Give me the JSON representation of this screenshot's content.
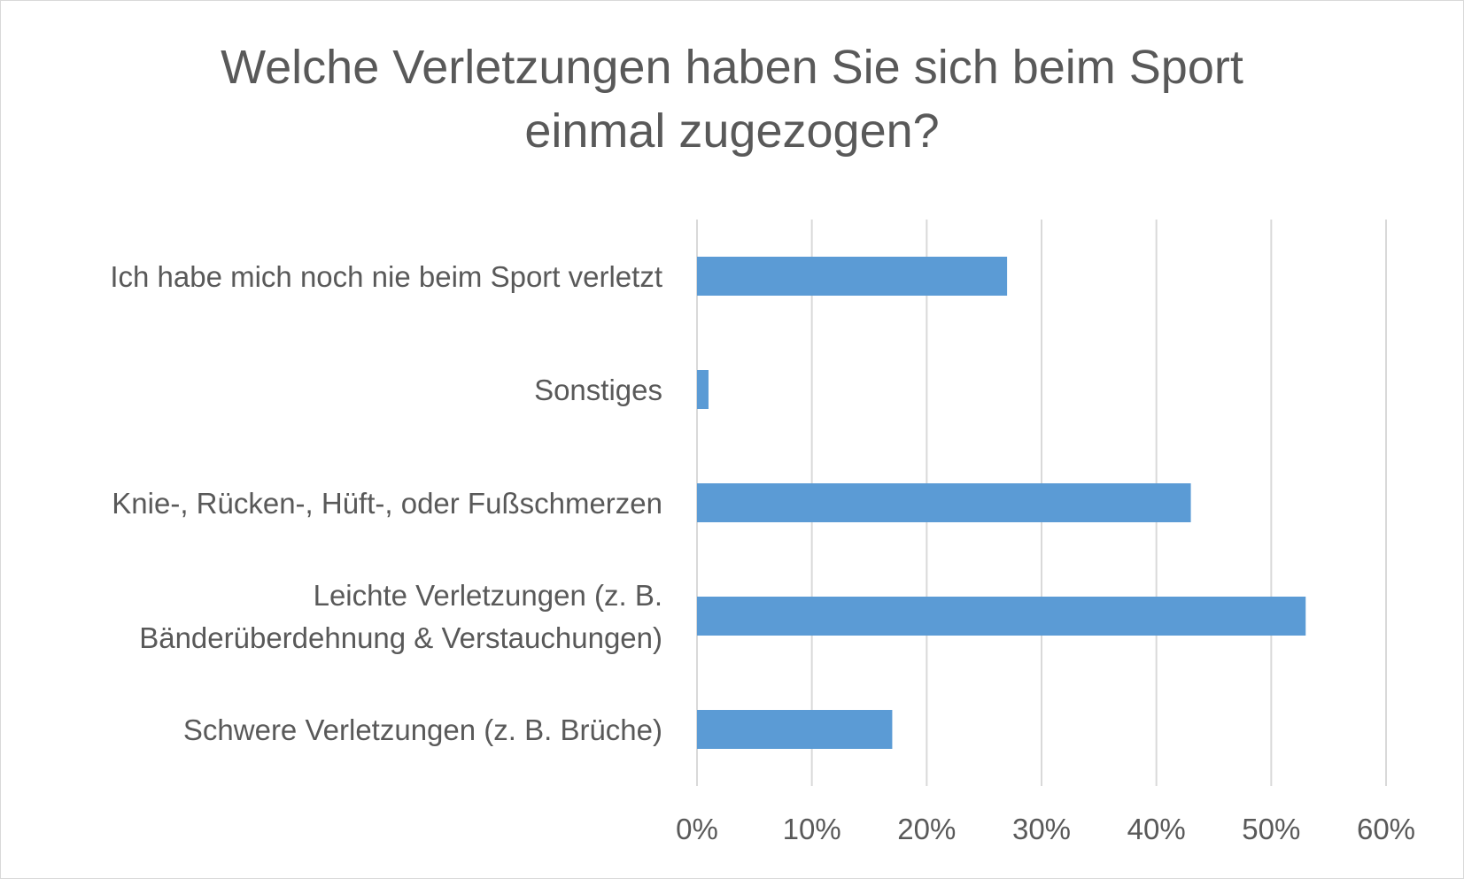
{
  "chart_data": {
    "type": "bar",
    "orientation": "horizontal",
    "title_lines": [
      "Welche Verletzungen haben Sie sich beim Sport",
      "einmal zugezogen?"
    ],
    "categories": [
      [
        "Ich habe mich noch nie beim Sport verletzt"
      ],
      [
        "Sonstiges"
      ],
      [
        "Knie-, Rücken-, Hüft-, oder Fußschmerzen"
      ],
      [
        "Leichte Verletzungen (z. B.",
        "Bänderüberdehnung & Verstauchungen)"
      ],
      [
        "Schwere Verletzungen (z. B. Brüche)"
      ]
    ],
    "values": [
      0.27,
      0.01,
      0.43,
      0.53,
      0.17
    ],
    "xlim": [
      0,
      0.6
    ],
    "xticks": [
      0,
      0.1,
      0.2,
      0.3,
      0.4,
      0.5,
      0.6
    ],
    "xtick_labels": [
      "0%",
      "10%",
      "20%",
      "30%",
      "40%",
      "50%",
      "60%"
    ],
    "bar_color": "#5b9bd5",
    "grid_color": "#d9d9d9",
    "text_color": "#595959",
    "grid": true,
    "legend": "none"
  }
}
